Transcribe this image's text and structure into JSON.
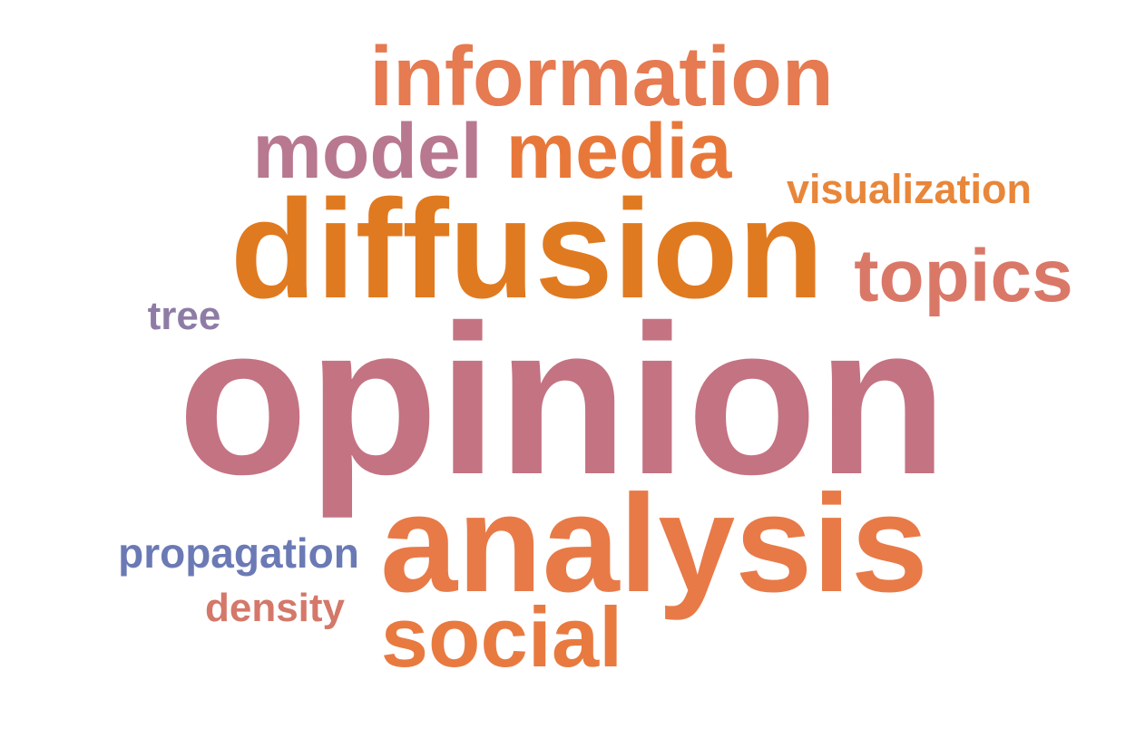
{
  "words": [
    {
      "key": "information",
      "text": "information",
      "color": "#E67A50"
    },
    {
      "key": "model",
      "text": "model",
      "color": "#B87890"
    },
    {
      "key": "media",
      "text": "media",
      "color": "#E8783A"
    },
    {
      "key": "visualization",
      "text": "visualization",
      "color": "#E8863A"
    },
    {
      "key": "diffusion",
      "text": "diffusion",
      "color": "#E07A20"
    },
    {
      "key": "topics",
      "text": "topics",
      "color": "#DA7868"
    },
    {
      "key": "tree",
      "text": "tree",
      "color": "#8E7CA6"
    },
    {
      "key": "opinion",
      "text": "opinion",
      "color": "#C47382"
    },
    {
      "key": "analysis",
      "text": "analysis",
      "color": "#E87A48"
    },
    {
      "key": "propagation",
      "text": "propagation",
      "color": "#6B7AB5"
    },
    {
      "key": "density",
      "text": "density",
      "color": "#D4786A"
    },
    {
      "key": "social",
      "text": "social",
      "color": "#E87A40"
    }
  ]
}
